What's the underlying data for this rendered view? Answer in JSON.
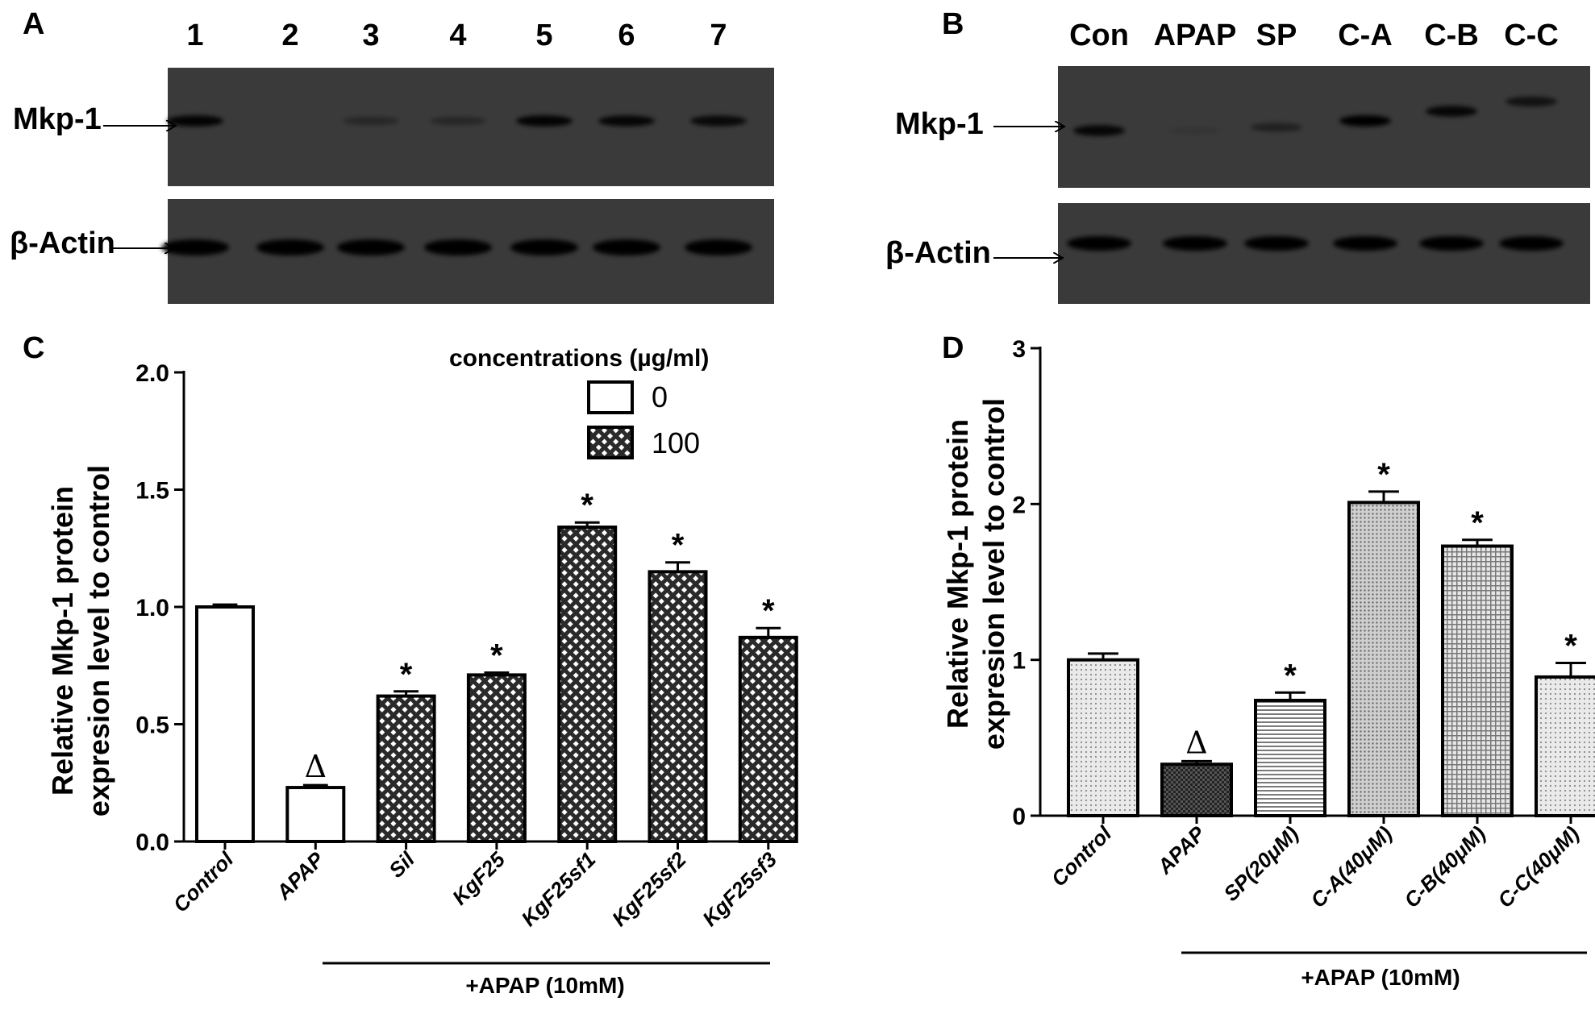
{
  "panels": {
    "a": {
      "letter": "A",
      "lanes": [
        "1",
        "2",
        "3",
        "4",
        "5",
        "6",
        "7"
      ],
      "rows": [
        {
          "label": "Mkp-1",
          "band_intensity": [
            0.95,
            0.0,
            0.35,
            0.35,
            0.95,
            0.9,
            0.85
          ]
        },
        {
          "label": "β-Actin",
          "band_intensity": [
            1,
            1,
            1,
            1,
            1,
            1,
            1
          ]
        }
      ]
    },
    "b": {
      "letter": "B",
      "lanes": [
        "Con",
        "APAP",
        "SP",
        "C-A",
        "C-B",
        "C-C"
      ],
      "rows": [
        {
          "label": "Mkp-1",
          "band_intensity": [
            0.9,
            0.1,
            0.45,
            1.0,
            0.9,
            0.7
          ]
        },
        {
          "label": "β-Actin",
          "band_intensity": [
            1,
            1,
            1,
            1,
            1,
            1
          ]
        }
      ]
    },
    "c": {
      "letter": "C"
    },
    "d": {
      "letter": "D"
    }
  },
  "colors": {
    "blot_background": "#3a3a3a",
    "blot_band": "#050505",
    "bar_stroke": "#000000",
    "hatch_light": "#d8d8d8",
    "hatch_dark": "#333333"
  },
  "chart_data": [
    {
      "panel": "C",
      "type": "bar",
      "title": "",
      "ylabel": "Relative Mkp-1 protein expresion level to control",
      "xlabel": "",
      "ylim": [
        0,
        2.0
      ],
      "yticks": [
        "0.0",
        "0.5",
        "1.0",
        "1.5",
        "2.0"
      ],
      "categories": [
        "Control",
        "APAP",
        "Sil",
        "KgF25",
        "KgF25sf1",
        "KgF25sf2",
        "KgF25sf3"
      ],
      "values": [
        1.0,
        0.23,
        0.62,
        0.71,
        1.34,
        1.15,
        0.87
      ],
      "errors": [
        0.01,
        0.01,
        0.02,
        0.01,
        0.02,
        0.04,
        0.04
      ],
      "fill": [
        "open",
        "open",
        "crosshatch",
        "crosshatch",
        "crosshatch",
        "crosshatch",
        "crosshatch"
      ],
      "significance": [
        "",
        "Δ",
        "*",
        "*",
        "*",
        "*",
        "*"
      ],
      "legend": {
        "title": "concentrations (µg/ml)",
        "entries": [
          {
            "label": "0",
            "fill": "open"
          },
          {
            "label": "100",
            "fill": "crosshatch"
          }
        ],
        "position": "top-right"
      },
      "bracket_label": "+APAP (10mM)"
    },
    {
      "panel": "D",
      "type": "bar",
      "title": "",
      "ylabel": "Relative Mkp-1 protein expresion level to control",
      "xlabel": "",
      "ylim": [
        0,
        3
      ],
      "yticks": [
        "0",
        "1",
        "2",
        "3"
      ],
      "categories": [
        "Control",
        "APAP",
        "SP(20μM)",
        "C-A(40μM)",
        "C-B(40μM)",
        "C-C(40μM)"
      ],
      "values": [
        1.0,
        0.33,
        0.74,
        2.01,
        1.73,
        0.89
      ],
      "errors": [
        0.04,
        0.02,
        0.05,
        0.07,
        0.04,
        0.09
      ],
      "fill": [
        "dots",
        "darkgrid",
        "hlines",
        "dense",
        "grid",
        "dots"
      ],
      "significance": [
        "",
        "Δ",
        "*",
        "*",
        "*",
        "*"
      ],
      "bracket_label": "+APAP (10mM)"
    }
  ]
}
